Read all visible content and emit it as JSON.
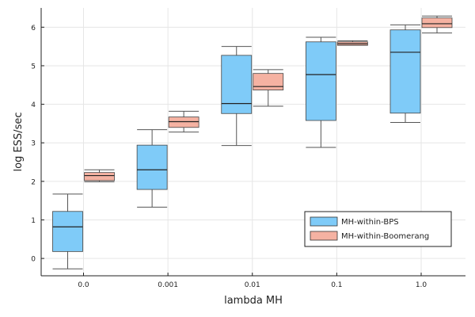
{
  "chart_data": {
    "type": "box",
    "xlabel": "lambda MH",
    "ylabel": "log ESS/sec",
    "categories": [
      "0.0",
      "0.001",
      "0.01",
      "0.1",
      "1.0"
    ],
    "ylim": [
      -0.45,
      6.5
    ],
    "yticks": [
      0,
      1,
      2,
      3,
      4,
      5,
      6
    ],
    "grid": true,
    "legend_position": "bottom-right",
    "series": [
      {
        "name": "MH-within-BPS",
        "color": "#7fcbf8",
        "boxes": [
          {
            "min": -0.27,
            "q1": 0.18,
            "median": 0.82,
            "q3": 1.22,
            "max": 1.67
          },
          {
            "min": 1.33,
            "q1": 1.79,
            "median": 2.3,
            "q3": 2.94,
            "max": 3.34
          },
          {
            "min": 2.93,
            "q1": 3.76,
            "median": 4.02,
            "q3": 5.27,
            "max": 5.5
          },
          {
            "min": 2.88,
            "q1": 3.58,
            "median": 4.77,
            "q3": 5.62,
            "max": 5.74
          },
          {
            "min": 3.53,
            "q1": 3.77,
            "median": 5.35,
            "q3": 5.93,
            "max": 6.06
          }
        ]
      },
      {
        "name": "MH-within-Boomerang",
        "color": "#f5b2a2",
        "boxes": [
          {
            "min": 1.99,
            "q1": 2.02,
            "median": 2.15,
            "q3": 2.23,
            "max": 2.3
          },
          {
            "min": 3.28,
            "q1": 3.4,
            "median": 3.55,
            "q3": 3.67,
            "max": 3.82
          },
          {
            "min": 3.95,
            "q1": 4.37,
            "median": 4.46,
            "q3": 4.8,
            "max": 4.9
          },
          {
            "min": 5.53,
            "q1": 5.53,
            "median": 5.57,
            "q3": 5.62,
            "max": 5.65
          },
          {
            "min": 5.85,
            "q1": 5.99,
            "median": 6.09,
            "q3": 6.24,
            "max": 6.29
          }
        ]
      }
    ]
  }
}
